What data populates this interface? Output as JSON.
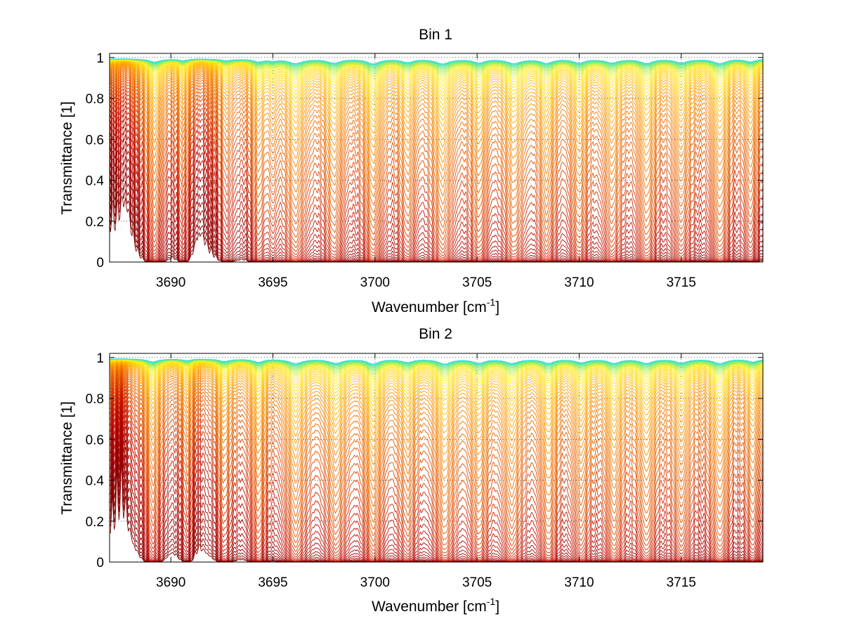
{
  "chart_data": [
    {
      "type": "line",
      "title": "Bin 1",
      "xlabel": "Wavenumber [cm",
      "xlabel_sup": "-1",
      "xlabel_end": "]",
      "ylabel": "Transmittance [1]",
      "xlim": [
        3687,
        3719
      ],
      "ylim": [
        0,
        1.02
      ],
      "xticks": [
        3690,
        3695,
        3700,
        3705,
        3710,
        3715
      ],
      "xtick_labels": [
        "3690",
        "3695",
        "3700",
        "3705",
        "3710",
        "3715"
      ],
      "yticks": [
        0,
        0.2,
        0.4,
        0.6,
        0.8,
        1
      ],
      "ytick_labels": [
        "0",
        "0.2",
        "0.4",
        "0.6",
        "0.8",
        "1"
      ],
      "grid": true,
      "absorption_lines": [
        {
          "x": 3689.2,
          "depth": 0.6,
          "width": 0.3
        },
        {
          "x": 3690.6,
          "depth": 0.3,
          "width": 0.25
        },
        {
          "x": 3692.7,
          "depth": 0.3,
          "width": 0.3
        },
        {
          "x": 3694.3,
          "depth": 0.5,
          "width": 0.3
        },
        {
          "x": 3695.0,
          "depth": 0.35,
          "width": 0.25
        },
        {
          "x": 3696.1,
          "depth": 0.85,
          "width": 0.4
        },
        {
          "x": 3698.0,
          "depth": 0.75,
          "width": 0.4
        },
        {
          "x": 3699.9,
          "depth": 0.9,
          "width": 0.35
        },
        {
          "x": 3701.6,
          "depth": 0.6,
          "width": 0.35
        },
        {
          "x": 3703.3,
          "depth": 0.9,
          "width": 0.4
        },
        {
          "x": 3705.1,
          "depth": 0.7,
          "width": 0.35
        },
        {
          "x": 3706.8,
          "depth": 0.85,
          "width": 0.4
        },
        {
          "x": 3708.4,
          "depth": 0.75,
          "width": 0.35
        },
        {
          "x": 3710.0,
          "depth": 0.75,
          "width": 0.35
        },
        {
          "x": 3711.6,
          "depth": 0.7,
          "width": 0.35
        },
        {
          "x": 3713.3,
          "depth": 0.8,
          "width": 0.4
        },
        {
          "x": 3715.0,
          "depth": 0.7,
          "width": 0.35
        },
        {
          "x": 3716.9,
          "depth": 0.85,
          "width": 0.4
        },
        {
          "x": 3718.4,
          "depth": 0.5,
          "width": 0.3
        }
      ],
      "colors": [
        "#7f0000",
        "#a50000",
        "#c81400",
        "#e04a00",
        "#f07000",
        "#ff9900",
        "#ffcc00",
        "#ffee22",
        "#88ee66",
        "#33dddd"
      ]
    },
    {
      "type": "line",
      "title": "Bin 2",
      "xlabel": "Wavenumber [cm",
      "xlabel_sup": "-1",
      "xlabel_end": "]",
      "ylabel": "Transmittance [1]",
      "xlim": [
        3687,
        3719
      ],
      "ylim": [
        0,
        1.02
      ],
      "xticks": [
        3690,
        3695,
        3700,
        3705,
        3710,
        3715
      ],
      "xtick_labels": [
        "3690",
        "3695",
        "3700",
        "3705",
        "3710",
        "3715"
      ],
      "yticks": [
        0,
        0.2,
        0.4,
        0.6,
        0.8,
        1
      ],
      "ytick_labels": [
        "0",
        "0.2",
        "0.4",
        "0.6",
        "0.8",
        "1"
      ],
      "grid": true,
      "absorption_lines": [
        {
          "x": 3689.1,
          "depth": 0.55,
          "width": 0.3
        },
        {
          "x": 3690.8,
          "depth": 0.3,
          "width": 0.25
        },
        {
          "x": 3692.6,
          "depth": 0.45,
          "width": 0.3
        },
        {
          "x": 3694.3,
          "depth": 0.6,
          "width": 0.3
        },
        {
          "x": 3696.1,
          "depth": 0.85,
          "width": 0.4
        },
        {
          "x": 3698.1,
          "depth": 0.8,
          "width": 0.4
        },
        {
          "x": 3699.9,
          "depth": 0.9,
          "width": 0.35
        },
        {
          "x": 3701.6,
          "depth": 0.6,
          "width": 0.35
        },
        {
          "x": 3703.4,
          "depth": 0.9,
          "width": 0.4
        },
        {
          "x": 3705.1,
          "depth": 0.75,
          "width": 0.35
        },
        {
          "x": 3706.7,
          "depth": 0.8,
          "width": 0.4
        },
        {
          "x": 3708.5,
          "depth": 0.75,
          "width": 0.35
        },
        {
          "x": 3710.1,
          "depth": 0.7,
          "width": 0.35
        },
        {
          "x": 3711.7,
          "depth": 0.75,
          "width": 0.35
        },
        {
          "x": 3713.3,
          "depth": 0.8,
          "width": 0.4
        },
        {
          "x": 3715.0,
          "depth": 0.7,
          "width": 0.35
        },
        {
          "x": 3716.9,
          "depth": 0.85,
          "width": 0.4
        },
        {
          "x": 3718.5,
          "depth": 0.55,
          "width": 0.3
        }
      ],
      "colors": [
        "#7f0000",
        "#a50000",
        "#c81400",
        "#e04a00",
        "#f07000",
        "#ff9900",
        "#ffcc00",
        "#ffee22",
        "#88ee66",
        "#33dddd"
      ]
    }
  ]
}
